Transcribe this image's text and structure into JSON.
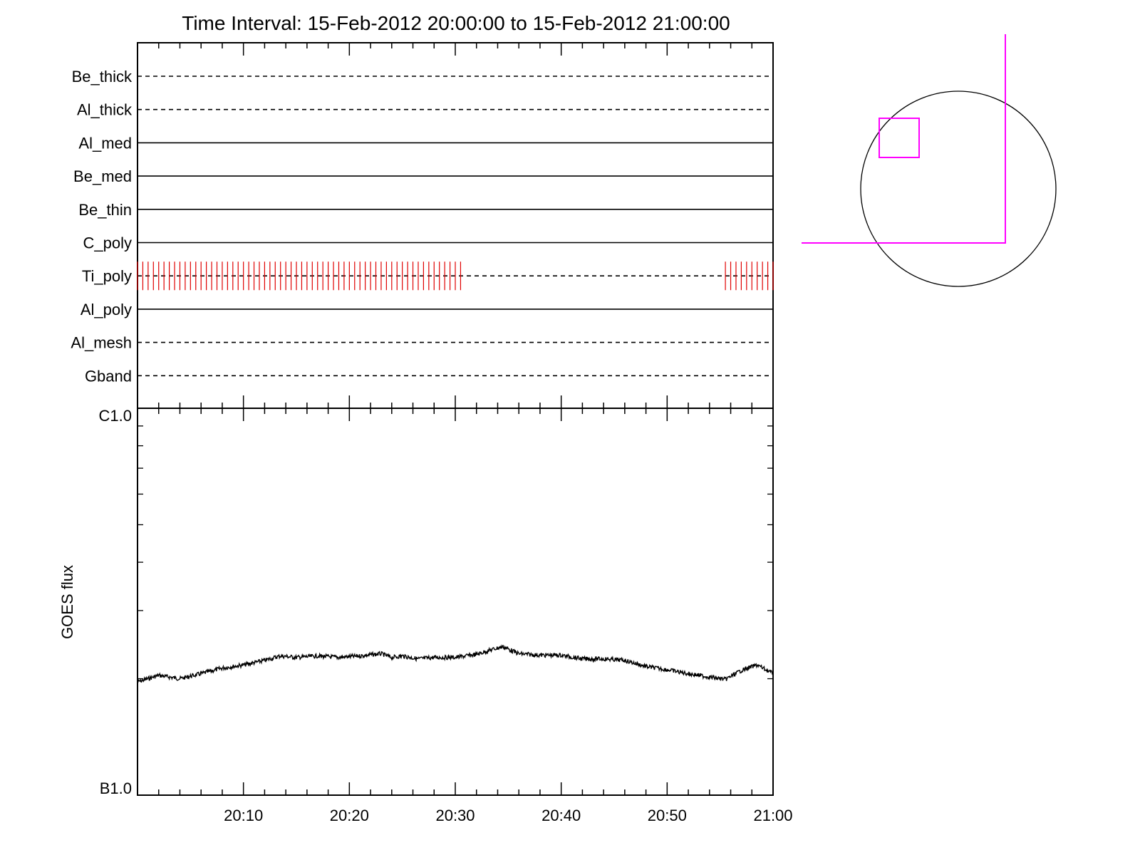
{
  "chart_data": [
    {
      "type": "timeline",
      "title": "Time Interval: 15-Feb-2012 20:00:00 to 15-Feb-2012 21:00:00",
      "x_unit": "minutes after 15-Feb-2012 20:00:00",
      "xlim": [
        0,
        60
      ],
      "filters": [
        {
          "name": "Be_thick",
          "style": "dashed"
        },
        {
          "name": "Al_thick",
          "style": "dashed"
        },
        {
          "name": "Al_med",
          "style": "solid"
        },
        {
          "name": "Be_med",
          "style": "solid"
        },
        {
          "name": "Be_thin",
          "style": "solid"
        },
        {
          "name": "C_poly",
          "style": "solid"
        },
        {
          "name": "Ti_poly",
          "style": "dashed"
        },
        {
          "name": "Al_poly",
          "style": "solid"
        },
        {
          "name": "Al_mesh",
          "style": "dashed"
        },
        {
          "name": "Gband",
          "style": "dashed"
        }
      ],
      "observations": {
        "filter": "Ti_poly",
        "color": "#e00000",
        "ranges": [
          [
            0,
            30.8
          ],
          [
            55.5,
            60
          ]
        ]
      }
    },
    {
      "type": "line",
      "ylabel": "GOES flux",
      "ylim_labels": {
        "top": "C1.0",
        "bottom": "B1.0"
      },
      "y_scale": "log",
      "ylim": [
        1e-07,
        1e-06
      ],
      "xlim": [
        0,
        60
      ],
      "x_tick_labels": [
        "20:10",
        "20:20",
        "20:30",
        "20:40",
        "20:50",
        "21:00"
      ],
      "x_tick_values": [
        10,
        20,
        30,
        40,
        50,
        60
      ],
      "series": [
        {
          "x": [
            0,
            2,
            4,
            6,
            8,
            10,
            12,
            13.5,
            15,
            17,
            19,
            21,
            23,
            24,
            25,
            26.5,
            28,
            30,
            32,
            33.5,
            34.5,
            36,
            38,
            40,
            42,
            44,
            46,
            48,
            50,
            52,
            54,
            55.5,
            57,
            58.5,
            60
          ],
          "y": [
            1.96e-07,
            2.04e-07,
            2e-07,
            2.06e-07,
            2.13e-07,
            2.17e-07,
            2.23e-07,
            2.29e-07,
            2.27e-07,
            2.29e-07,
            2.27e-07,
            2.29e-07,
            2.32e-07,
            2.27e-07,
            2.29e-07,
            2.25e-07,
            2.27e-07,
            2.27e-07,
            2.31e-07,
            2.38e-07,
            2.42e-07,
            2.32e-07,
            2.3e-07,
            2.3e-07,
            2.25e-07,
            2.25e-07,
            2.23e-07,
            2.15e-07,
            2.11e-07,
            2.06e-07,
            2.02e-07,
            1.99e-07,
            2.1e-07,
            2.17e-07,
            2.06e-07
          ]
        }
      ]
    }
  ],
  "context_map": {
    "disk_color": "#000000",
    "fov_color": "#ff00ff"
  }
}
